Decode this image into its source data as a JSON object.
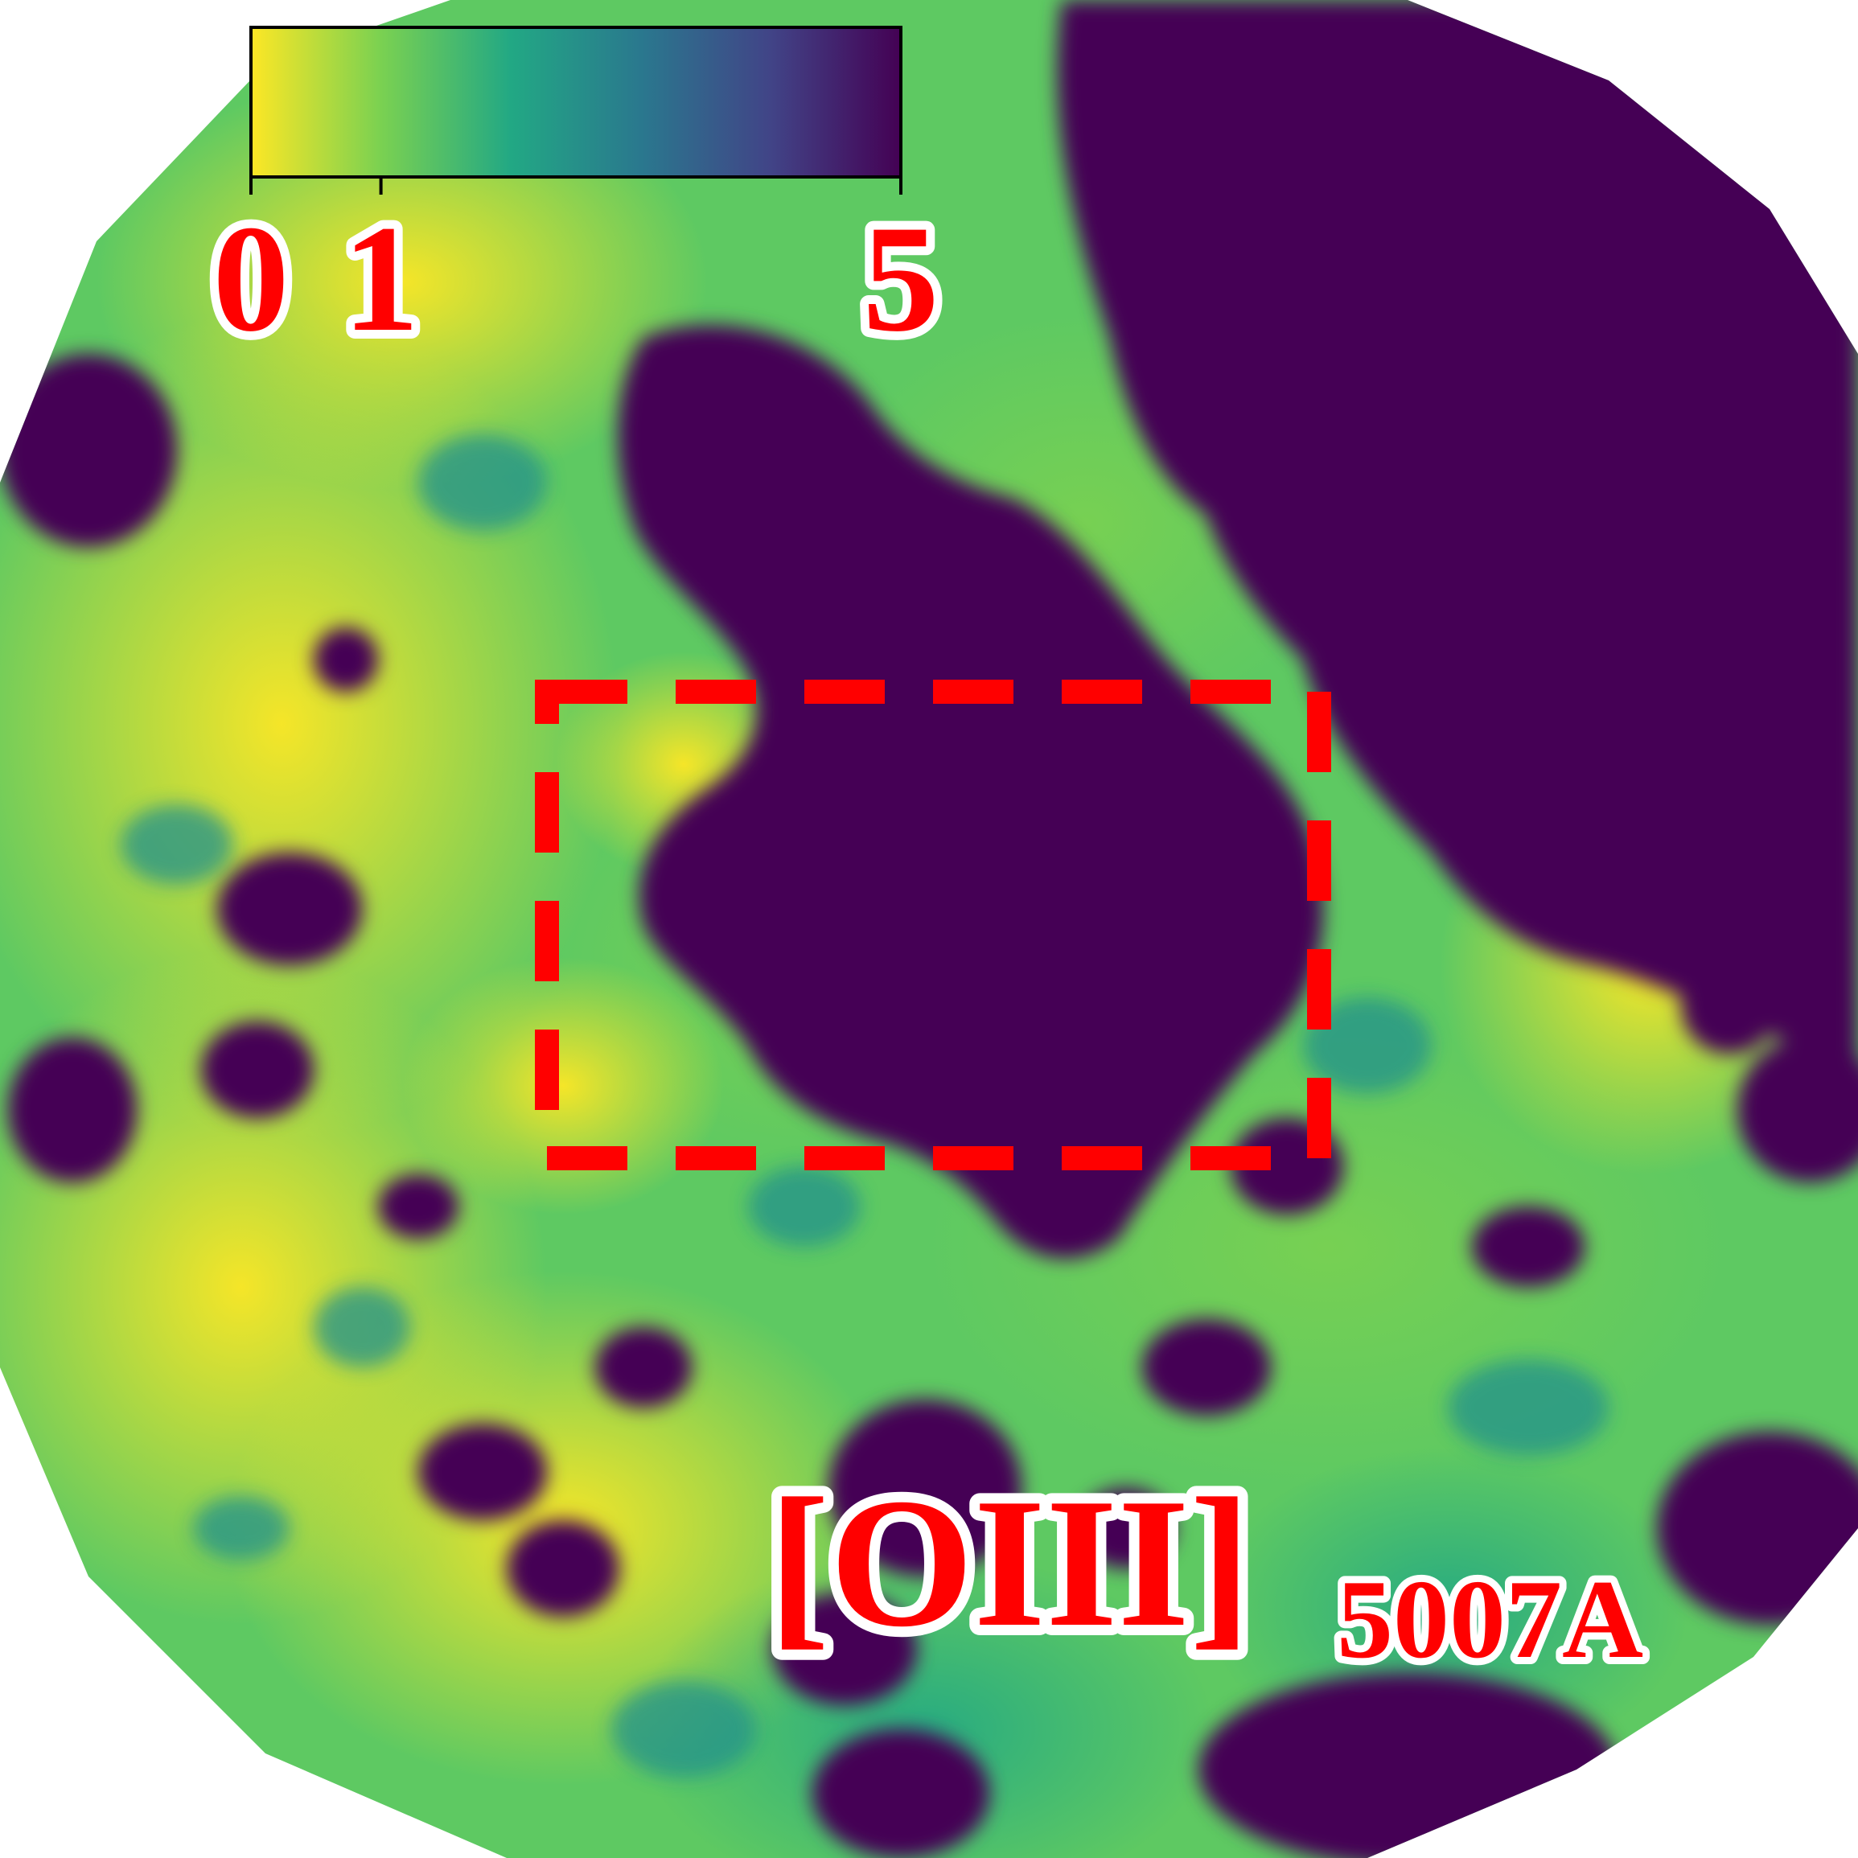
{
  "chart_data": {
    "type": "heatmap",
    "title": "",
    "colormap": "viridis-reversed",
    "colors": [
      "#fde725",
      "#7ad151",
      "#22a884",
      "#2a788e",
      "#414487",
      "#440154"
    ],
    "colorbar": {
      "range": [
        0,
        5
      ],
      "ticks": [
        0,
        1,
        5
      ],
      "tick_labels": [
        "0",
        "1",
        "5"
      ],
      "placement": "top-left"
    },
    "annotations": {
      "line_label": "[OIII]",
      "wavelength": "5007A"
    },
    "highlight_region": {
      "style": "dashed",
      "color": "#ff0000"
    }
  }
}
